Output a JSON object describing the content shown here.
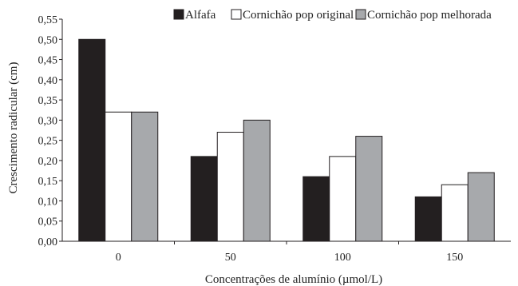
{
  "chart_data": {
    "type": "bar",
    "title": "",
    "xlabel": "Concentrações de alumínio (µmol/L)",
    "ylabel": "Crescimento radicular (cm)",
    "categories": [
      "0",
      "50",
      "100",
      "150"
    ],
    "series": [
      {
        "name": "Alfafa",
        "values": [
          0.5,
          0.21,
          0.16,
          0.11
        ],
        "color": "#231f20"
      },
      {
        "name": "Cornichão pop original",
        "values": [
          0.32,
          0.27,
          0.21,
          0.14
        ],
        "color": "#ffffff"
      },
      {
        "name": "Cornichão pop melhorada",
        "values": [
          0.32,
          0.3,
          0.26,
          0.17
        ],
        "color": "#a7a9ac"
      }
    ],
    "ylim": [
      0,
      0.55
    ],
    "yticks": [
      "0,00",
      "0,05",
      "0,10",
      "0,15",
      "0,20",
      "0,25",
      "0,30",
      "0,35",
      "0,40",
      "0,45",
      "0,50",
      "0,55"
    ],
    "grid": false,
    "legend_position": "top"
  }
}
